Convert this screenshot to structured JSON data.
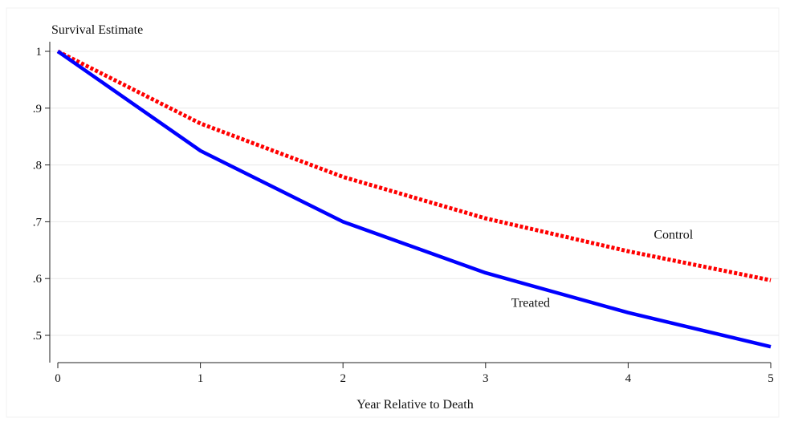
{
  "chart_data": {
    "type": "line",
    "title": "",
    "ylabel": "Survival Estimate",
    "xlabel": "Year Relative to Death",
    "x": [
      0,
      1,
      2,
      3,
      4,
      5
    ],
    "xlim": [
      0,
      5
    ],
    "ylim": [
      0.45,
      1.0
    ],
    "x_ticks": [
      0,
      1,
      2,
      3,
      4,
      5
    ],
    "x_tick_labels": [
      "0",
      "1",
      "2",
      "3",
      "4",
      "5"
    ],
    "y_ticks": [
      1,
      0.9,
      0.8,
      0.7,
      0.6,
      0.5
    ],
    "y_tick_labels": [
      "1",
      ".9",
      ".8",
      ".7",
      ".6",
      ".5"
    ],
    "grid": true,
    "legend": "none",
    "series": [
      {
        "name": "Treated",
        "values": [
          1.0,
          0.825,
          0.7,
          0.61,
          0.54,
          0.48
        ],
        "color": "#0000ff",
        "style": "solid"
      },
      {
        "name": "Control",
        "values": [
          1.0,
          0.873,
          0.779,
          0.706,
          0.648,
          0.597
        ],
        "color": "#ff0000",
        "style": "dotted"
      }
    ],
    "annotations": [
      {
        "text": "Control",
        "x": 4.18,
        "y": 0.67
      },
      {
        "text": "Treated",
        "x": 3.18,
        "y": 0.55
      }
    ]
  }
}
